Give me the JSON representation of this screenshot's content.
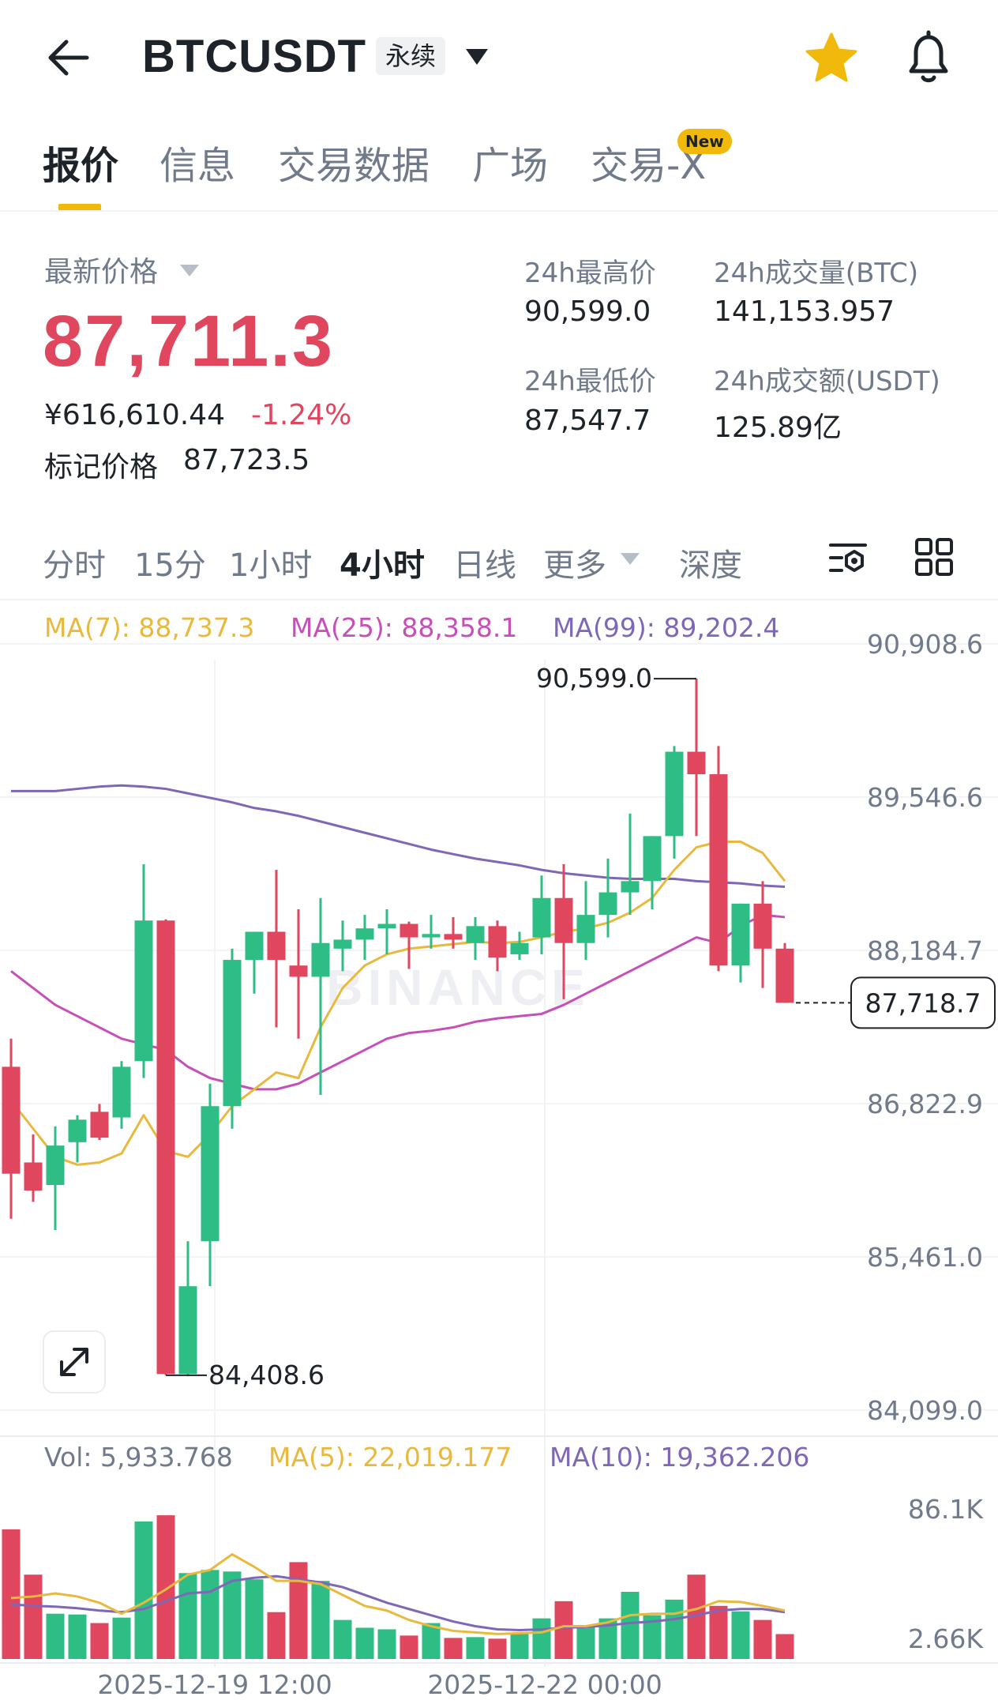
{
  "header": {
    "symbol": "BTCUSDT",
    "contract_badge": "永续",
    "icons": [
      "arrow-left-icon",
      "caret-down-icon",
      "star-icon",
      "bell-icon"
    ],
    "star_color": "#f0b90b"
  },
  "tabs": [
    {
      "label": "报价",
      "active": true
    },
    {
      "label": "信息",
      "active": false
    },
    {
      "label": "交易数据",
      "active": false
    },
    {
      "label": "广场",
      "active": false
    },
    {
      "label": "交易-X",
      "active": false,
      "badge": "New"
    }
  ],
  "price": {
    "label": "最新价格",
    "last": "87,711.3",
    "cny": "¥616,610.44",
    "change": "-1.24%",
    "mark_label": "标记价格",
    "mark_value": "87,723.5",
    "color_down": "#e0475f",
    "color_up": "#2ebd85"
  },
  "stats": {
    "high_label": "24h最高价",
    "high": "90,599.0",
    "low_label": "24h最低价",
    "low": "87,547.7",
    "vol_btc_label": "24h成交量(BTC)",
    "vol_btc": "141,153.957",
    "vol_usdt_label": "24h成交额(USDT)",
    "vol_usdt": "125.89亿"
  },
  "intervals": [
    {
      "label": "分时",
      "active": false
    },
    {
      "label": "15分",
      "active": false
    },
    {
      "label": "1小时",
      "active": false
    },
    {
      "label": "4小时",
      "active": true
    },
    {
      "label": "日线",
      "active": false
    },
    {
      "label": "更多",
      "active": false
    },
    {
      "label": "深度",
      "active": false
    }
  ],
  "chart_data": {
    "type": "candlestick",
    "interval": "4小时",
    "watermark": "BINANCE",
    "ma_legend": [
      {
        "label": "MA(7): 88,737.3",
        "color": "#e8b93c"
      },
      {
        "label": "MA(25): 88,358.1",
        "color": "#c64fb8"
      },
      {
        "label": "MA(99): 89,202.4",
        "color": "#7f67b8"
      }
    ],
    "y_ticks": [
      "90,908.6",
      "89,546.6",
      "88,184.7",
      "86,822.9",
      "85,461.0",
      "84,099.0"
    ],
    "y_tick_values": [
      90908.6,
      89546.6,
      88184.7,
      86822.9,
      85461.0,
      84099.0
    ],
    "ylim": [
      84099.0,
      90908.6
    ],
    "current_price_tag": "87,718.7",
    "current_price": 87718.7,
    "high_marker": {
      "label": "90,599.0",
      "value": 90599.0
    },
    "low_marker": {
      "label": "84,408.6",
      "value": 84408.6
    },
    "x_labels": [
      "2025-12-19 12:00",
      "2025-12-22 00:00"
    ],
    "candles": [
      {
        "o": 87150,
        "h": 87400,
        "l": 85800,
        "c": 86200
      },
      {
        "o": 86300,
        "h": 86550,
        "l": 85950,
        "c": 86050
      },
      {
        "o": 86100,
        "h": 86620,
        "l": 85700,
        "c": 86450
      },
      {
        "o": 86480,
        "h": 86720,
        "l": 86300,
        "c": 86680
      },
      {
        "o": 86750,
        "h": 86820,
        "l": 86500,
        "c": 86520
      },
      {
        "o": 86700,
        "h": 87200,
        "l": 86600,
        "c": 87150
      },
      {
        "o": 87200,
        "h": 88950,
        "l": 87050,
        "c": 88450
      },
      {
        "o": 88450,
        "h": 88460,
        "l": 84408.6,
        "c": 84420
      },
      {
        "o": 84420,
        "h": 85600,
        "l": 84400,
        "c": 85200
      },
      {
        "o": 85600,
        "h": 87000,
        "l": 85200,
        "c": 86800
      },
      {
        "o": 86800,
        "h": 88200,
        "l": 86600,
        "c": 88100
      },
      {
        "o": 88100,
        "h": 88300,
        "l": 87800,
        "c": 88350
      },
      {
        "o": 88350,
        "h": 88900,
        "l": 87500,
        "c": 88100
      },
      {
        "o": 88050,
        "h": 88550,
        "l": 87400,
        "c": 87950
      },
      {
        "o": 87950,
        "h": 88650,
        "l": 86900,
        "c": 88250
      },
      {
        "o": 88200,
        "h": 88450,
        "l": 88000,
        "c": 88280
      },
      {
        "o": 88280,
        "h": 88500,
        "l": 88100,
        "c": 88380
      },
      {
        "o": 88380,
        "h": 88550,
        "l": 88150,
        "c": 88420
      },
      {
        "o": 88420,
        "h": 88440,
        "l": 88020,
        "c": 88300
      },
      {
        "o": 88300,
        "h": 88500,
        "l": 88200,
        "c": 88330
      },
      {
        "o": 88330,
        "h": 88480,
        "l": 88200,
        "c": 88280
      },
      {
        "o": 88250,
        "h": 88480,
        "l": 88100,
        "c": 88400
      },
      {
        "o": 88400,
        "h": 88450,
        "l": 88000,
        "c": 88120
      },
      {
        "o": 88150,
        "h": 88350,
        "l": 88100,
        "c": 88250
      },
      {
        "o": 88300,
        "h": 88850,
        "l": 88150,
        "c": 88650
      },
      {
        "o": 88650,
        "h": 88950,
        "l": 87750,
        "c": 88250
      },
      {
        "o": 88250,
        "h": 88800,
        "l": 88100,
        "c": 88500
      },
      {
        "o": 88500,
        "h": 89000,
        "l": 88300,
        "c": 88700
      },
      {
        "o": 88700,
        "h": 89400,
        "l": 88500,
        "c": 88800
      },
      {
        "o": 88800,
        "h": 89200,
        "l": 88550,
        "c": 89200
      },
      {
        "o": 89200,
        "h": 90000,
        "l": 89000,
        "c": 89950
      },
      {
        "o": 89950,
        "h": 90599.0,
        "l": 89200,
        "c": 89750
      },
      {
        "o": 89750,
        "h": 90000,
        "l": 88000,
        "c": 88050
      },
      {
        "o": 88050,
        "h": 88600,
        "l": 87900,
        "c": 88600
      },
      {
        "o": 88600,
        "h": 88800,
        "l": 87850,
        "c": 88200
      },
      {
        "o": 88200,
        "h": 88250,
        "l": 87718.7,
        "c": 87718.7
      }
    ],
    "ma7": [
      86850,
      86600,
      86350,
      86280,
      86300,
      86380,
      86720,
      86400,
      86350,
      86550,
      86800,
      86950,
      87100,
      87050,
      87500,
      87850,
      88050,
      88150,
      88200,
      88220,
      88240,
      88260,
      88250,
      88260,
      88300,
      88350,
      88380,
      88430,
      88520,
      88650,
      88900,
      89100,
      89150,
      89150,
      89050,
      88800
    ],
    "ma25": [
      88000,
      87850,
      87700,
      87600,
      87500,
      87400,
      87350,
      87300,
      87150,
      87050,
      87000,
      86950,
      86950,
      87000,
      87100,
      87200,
      87300,
      87400,
      87450,
      87470,
      87500,
      87550,
      87580,
      87600,
      87620,
      87700,
      87800,
      87900,
      88000,
      88100,
      88200,
      88300,
      88250,
      88400,
      88500,
      88480
    ],
    "ma99_start_index": 0,
    "ma99": [
      89600,
      89600,
      89600,
      89620,
      89640,
      89650,
      89640,
      89620,
      89580,
      89540,
      89500,
      89450,
      89420,
      89380,
      89330,
      89280,
      89230,
      89180,
      89130,
      89080,
      89040,
      89000,
      88970,
      88940,
      88900,
      88870,
      88850,
      88830,
      88820,
      88820,
      88820,
      88800,
      88790,
      88780,
      88760,
      88750
    ],
    "volume": {
      "legend": [
        {
          "label": "Vol: 5,933.768",
          "color": "#707a8a"
        },
        {
          "label": "MA(5): 22,019.177",
          "color": "#e8b93c"
        },
        {
          "label": "MA(10): 19,362.206",
          "color": "#7f67b8"
        }
      ],
      "y_ticks": [
        "86.1K",
        "2.66K"
      ],
      "ylim": [
        2660,
        86100
      ],
      "values": [
        73000,
        44000,
        19000,
        18500,
        13000,
        16500,
        78000,
        82000,
        45000,
        47000,
        46000,
        41000,
        20000,
        52000,
        40000,
        15000,
        10000,
        9000,
        5000,
        13000,
        3500,
        4000,
        3000,
        6000,
        16000,
        27000,
        10500,
        16000,
        33000,
        18000,
        28000,
        44000,
        24000,
        20500,
        15000,
        5934
      ],
      "ma5": [
        29000,
        30000,
        32000,
        30000,
        26000,
        19000,
        26000,
        34500,
        44000,
        47000,
        57000,
        49000,
        40000,
        40000,
        38000,
        31000,
        24000,
        21000,
        15000,
        11000,
        8000,
        7000,
        6000,
        6500,
        7000,
        11000,
        11000,
        13500,
        18000,
        19000,
        19000,
        22000,
        27000,
        26500,
        24000,
        21000
      ],
      "ma10": [
        25000,
        24000,
        23500,
        22500,
        21000,
        20000,
        22000,
        27000,
        32000,
        33000,
        40000,
        42000,
        43000,
        41000,
        39000,
        36000,
        31000,
        26000,
        22000,
        18000,
        14000,
        11000,
        9000,
        8500,
        9000,
        10000,
        10500,
        11500,
        13000,
        14000,
        15500,
        18000,
        21000,
        22000,
        22000,
        20000
      ]
    }
  }
}
